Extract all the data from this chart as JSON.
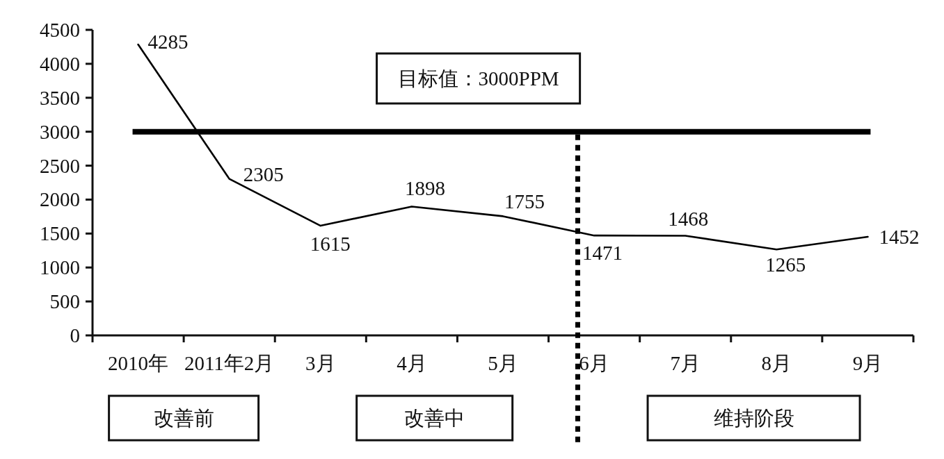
{
  "chart_data": {
    "type": "line",
    "categories": [
      "2010年",
      "2011年2月",
      "3月",
      "4月",
      "5月",
      "6月",
      "7月",
      "8月",
      "9月"
    ],
    "series": [
      {
        "color": "#000000",
        "values": [
          4285,
          2305,
          1615,
          1898,
          1755,
          1471,
          1468,
          1265,
          1452
        ]
      }
    ],
    "ylim": [
      0,
      4500
    ],
    "yticks": [
      0,
      500,
      1000,
      1500,
      2000,
      2500,
      3000,
      3500,
      4000,
      4500
    ],
    "data_labels": true,
    "ref_lines": [
      {
        "axis": "y",
        "value": 3000,
        "label": "目标值：3000PPM",
        "color": "#000000",
        "line_style": "solid"
      },
      {
        "axis": "x",
        "value": "6月",
        "color": "#000000",
        "line_style": "dotted"
      }
    ],
    "annotations": [
      "改善前",
      "改善中",
      "维持阶段"
    ]
  }
}
